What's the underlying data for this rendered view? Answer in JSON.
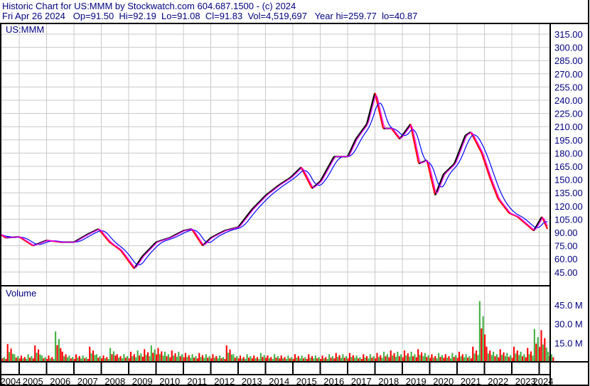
{
  "header": {
    "title": "Historic Chart for US:MMM by Stockwatch.com 604.687.1500 - (c) 2024",
    "quote": "Fri Apr 26 2024   Op=91.50  Hi=92.19  Lo=91.08  Cl=91.83  Vol=4,519,697   Year hi=259.77  lo=40.87"
  },
  "chart_data": [
    {
      "type": "line",
      "title": "US:MMM",
      "y_ticks": [
        "315.00",
        "300.00",
        "285.00",
        "270.00",
        "255.00",
        "240.00",
        "225.00",
        "210.00",
        "195.00",
        "180.00",
        "165.00",
        "150.00",
        "135.00",
        "120.00",
        "105.00",
        "90.00",
        "75.00",
        "60.00",
        "45.00"
      ],
      "ylim": [
        45,
        315
      ],
      "x_ticks": [
        "2004",
        "2005",
        "2006",
        "2007",
        "2008",
        "2009",
        "2010",
        "2011",
        "2012",
        "2013",
        "2014",
        "2015",
        "2016",
        "2017",
        "2018",
        "2019",
        "2020",
        "2021",
        "2022",
        "2023",
        "2024"
      ],
      "grid": true,
      "series": [
        {
          "x": [
            2004.3,
            2004.5,
            2005.0,
            2005.5,
            2006.0,
            2006.5,
            2007.0,
            2007.5,
            2007.9,
            2008.3,
            2008.7,
            2009.2,
            2009.5,
            2010.0,
            2010.5,
            2011.0,
            2011.3,
            2011.7,
            2012.0,
            2012.5,
            2013.0,
            2013.5,
            2014.0,
            2014.5,
            2014.9,
            2015.3,
            2015.7,
            2016.0,
            2016.5,
            2017.0,
            2017.3,
            2017.7,
            2018.0,
            2018.3,
            2018.6,
            2018.9,
            2019.3,
            2019.6,
            2019.9,
            2020.2,
            2020.5,
            2020.9,
            2021.3,
            2021.5,
            2021.9,
            2022.2,
            2022.5,
            2022.9,
            2023.2,
            2023.5,
            2023.8,
            2024.1,
            2024.3
          ],
          "y": [
            88,
            84,
            85,
            75,
            81,
            79,
            79,
            88,
            94,
            79,
            70,
            49,
            63,
            79,
            84,
            92,
            94,
            75,
            84,
            92,
            96,
            116,
            132,
            144,
            152,
            164,
            140,
            148,
            176,
            176,
            196,
            213,
            249,
            208,
            208,
            196,
            213,
            168,
            172,
            132,
            156,
            168,
            200,
            204,
            180,
            152,
            128,
            112,
            108,
            100,
            92,
            108,
            94
          ]
        }
      ],
      "moving_averages": [
        {
          "color": "#0000ff"
        },
        {
          "color": "#ff00ff"
        }
      ],
      "colors": {
        "up": "#000000",
        "down": "#ff0000"
      }
    },
    {
      "type": "bar",
      "title": "Volume",
      "y_ticks": [
        "45.0 M",
        "30.0 M",
        "15.0 M"
      ],
      "ylim": [
        0,
        60
      ],
      "unit": "M",
      "x_start": 2004.3,
      "x_step": 0.25,
      "values": [
        5,
        14,
        6,
        5,
        6,
        13,
        5,
        5,
        24,
        8,
        5,
        6,
        5,
        12,
        6,
        5,
        11,
        6,
        6,
        8,
        9,
        10,
        13,
        11,
        8,
        9,
        8,
        7,
        6,
        7,
        6,
        6,
        5,
        13,
        6,
        5,
        6,
        5,
        7,
        5,
        6,
        5,
        5,
        6,
        5,
        6,
        5,
        5,
        6,
        7,
        6,
        7,
        5,
        6,
        6,
        7,
        8,
        9,
        8,
        9,
        8,
        10,
        7,
        6,
        7,
        6,
        7,
        8,
        6,
        12,
        48,
        12,
        8,
        10,
        7,
        12,
        8,
        11,
        26,
        25,
        8
      ],
      "colors": {
        "up": "#44b044",
        "down": "#ff0000"
      }
    }
  ]
}
